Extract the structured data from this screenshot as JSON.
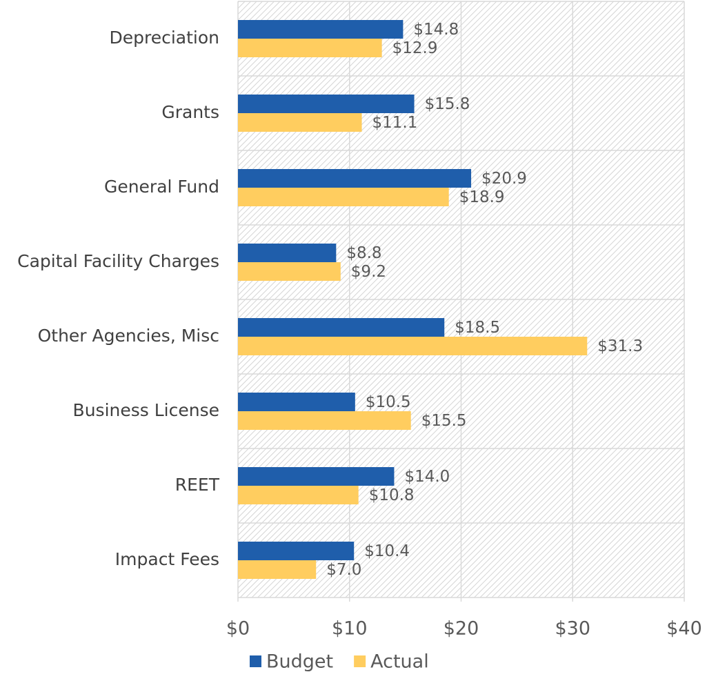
{
  "chart_data": {
    "type": "bar",
    "orientation": "horizontal",
    "categories": [
      "Depreciation",
      "Grants",
      "General Fund",
      "Capital Facility Charges",
      "Other Agencies, Misc",
      "Business License",
      "REET",
      "Impact Fees"
    ],
    "series": [
      {
        "name": "Budget",
        "color": "#1f5eab",
        "values": [
          14.8,
          15.8,
          20.9,
          8.8,
          18.5,
          10.5,
          14.0,
          10.4
        ],
        "value_labels": [
          "$14.8",
          "$15.8",
          "$20.9",
          "$8.8",
          "$18.5",
          "$10.5",
          "$14.0",
          "$10.4"
        ]
      },
      {
        "name": "Actual",
        "color": "#ffcd5f",
        "values": [
          12.9,
          11.1,
          18.9,
          9.2,
          31.3,
          15.5,
          10.8,
          7.0
        ],
        "value_labels": [
          "$12.9",
          "$11.1",
          "$18.9",
          "$9.2",
          "$31.3",
          "$15.5",
          "$10.8",
          "$7.0"
        ]
      }
    ],
    "xlim": [
      0,
      40
    ],
    "xticks": [
      {
        "value": 0,
        "label": "$0"
      },
      {
        "value": 10,
        "label": "$10"
      },
      {
        "value": 20,
        "label": "$20"
      },
      {
        "value": 30,
        "label": "$30"
      },
      {
        "value": 40,
        "label": "$40"
      }
    ],
    "grid": true,
    "legend": "bottom"
  }
}
